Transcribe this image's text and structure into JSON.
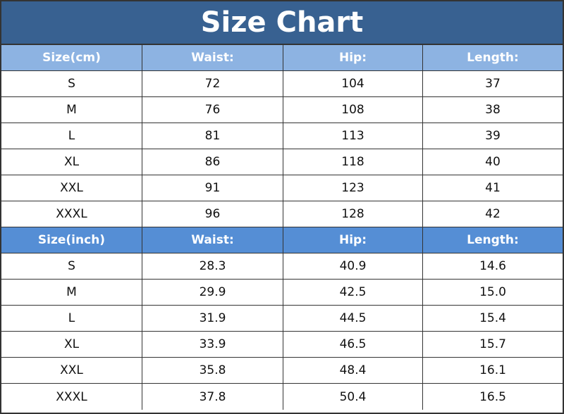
{
  "title": "Size Chart",
  "tables": [
    {
      "header": [
        "Size(cm)",
        "Waist:",
        "Hip:",
        "Length:"
      ],
      "rows": [
        [
          "S",
          "72",
          "104",
          "37"
        ],
        [
          "M",
          "76",
          "108",
          "38"
        ],
        [
          "L",
          "81",
          "113",
          "39"
        ],
        [
          "XL",
          "86",
          "118",
          "40"
        ],
        [
          "XXL",
          "91",
          "123",
          "41"
        ],
        [
          "XXXL",
          "96",
          "128",
          "42"
        ]
      ]
    },
    {
      "header": [
        "Size(inch)",
        "Waist:",
        "Hip:",
        "Length:"
      ],
      "rows": [
        [
          "S",
          "28.3",
          "40.9",
          "14.6"
        ],
        [
          "M",
          "29.9",
          "42.5",
          "15.0"
        ],
        [
          "L",
          "31.9",
          "44.5",
          "15.4"
        ],
        [
          "XL",
          "33.9",
          "46.5",
          "15.7"
        ],
        [
          "XXL",
          "35.8",
          "48.4",
          "16.1"
        ],
        [
          "XXXL",
          "37.8",
          "50.4",
          "16.5"
        ]
      ]
    }
  ]
}
